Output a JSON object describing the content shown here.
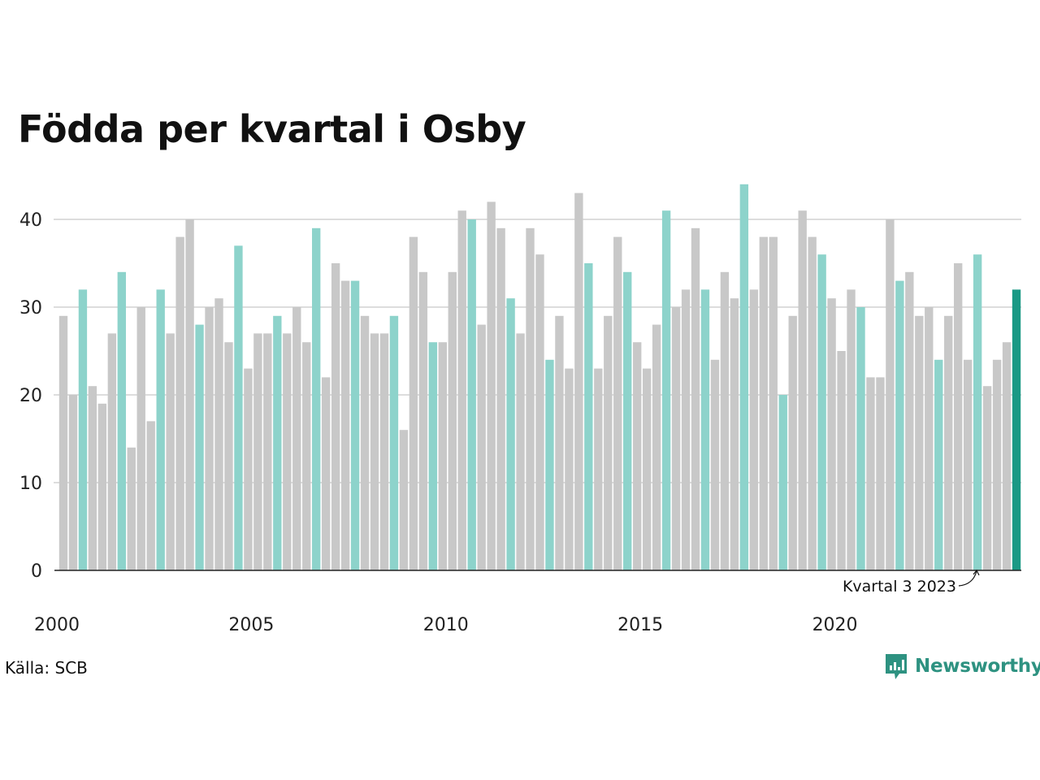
{
  "title": "Födda per kvartal i Osby",
  "source": "Källa: SCB",
  "brand": "Newsworthy",
  "annotation": "Kvartal 3 2023",
  "colors": {
    "bar_default": "#c8c8c8",
    "bar_quarter3": "#8dd3cb",
    "bar_latest": "#1a9985",
    "brand": "#2e9281",
    "grid": "#dddddd",
    "axis": "#222222"
  },
  "chart_data": {
    "type": "bar",
    "title": "Födda per kvartal i Osby",
    "xlabel": "",
    "ylabel": "",
    "ylim": [
      0,
      45
    ],
    "yticks": [
      0,
      10,
      20,
      30,
      40
    ],
    "xticks": [
      "2000",
      "2005",
      "2010",
      "2015",
      "2020"
    ],
    "start_year": 2000,
    "grid": true,
    "highlight_quarter": 3,
    "values": [
      29,
      20,
      32,
      21,
      19,
      27,
      34,
      14,
      30,
      17,
      32,
      27,
      38,
      40,
      28,
      30,
      31,
      26,
      37,
      23,
      27,
      27,
      29,
      27,
      30,
      26,
      39,
      22,
      35,
      33,
      33,
      29,
      27,
      27,
      29,
      16,
      38,
      34,
      26,
      26,
      34,
      41,
      40,
      28,
      42,
      39,
      31,
      27,
      39,
      36,
      24,
      29,
      23,
      43,
      35,
      23,
      29,
      38,
      34,
      26,
      23,
      28,
      41,
      30,
      32,
      39,
      32,
      24,
      34,
      31,
      44,
      32,
      38,
      38,
      20,
      29,
      41,
      38,
      36,
      31,
      25,
      32,
      30,
      22,
      22,
      40,
      33,
      34,
      29,
      30,
      24,
      29,
      35,
      24,
      36,
      21,
      24,
      26,
      32
    ]
  }
}
